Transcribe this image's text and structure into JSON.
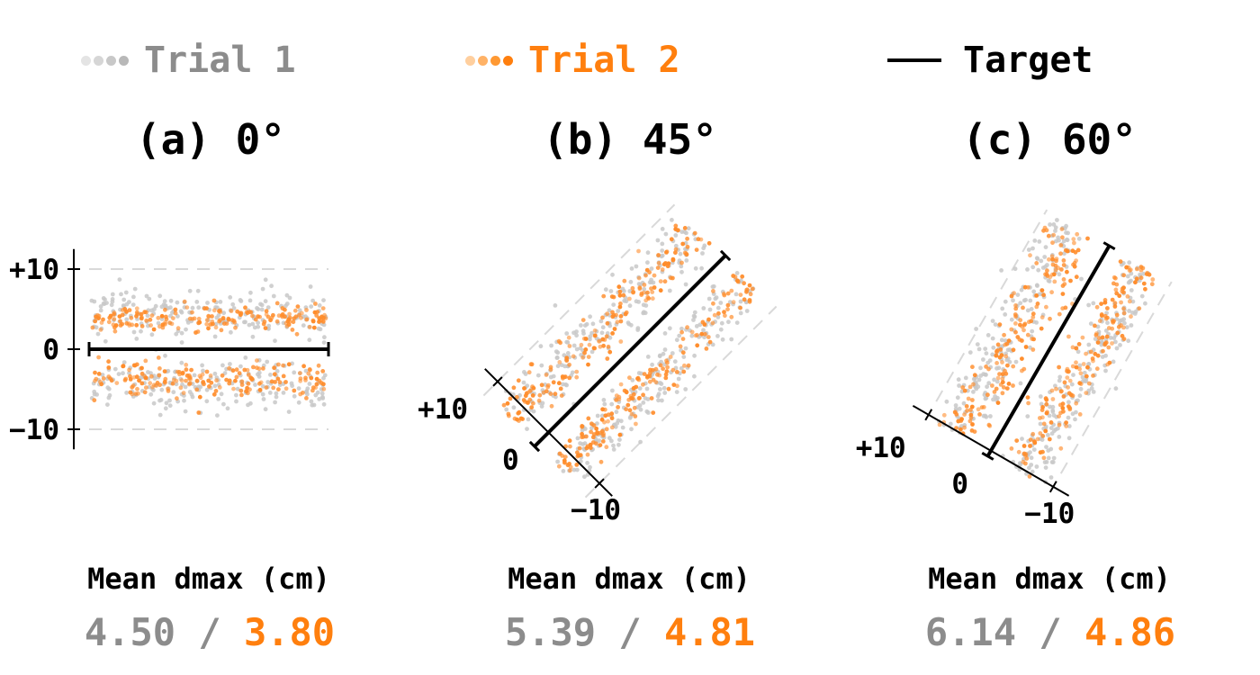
{
  "legend": {
    "trial1": "Trial 1",
    "trial2": "Trial 2",
    "target": "Target"
  },
  "colors": {
    "trial1": "#8c8c8c",
    "trial1_points": "#c8c8c8",
    "trial2": "#ff7f0e",
    "trial2_points": "#ff8c2a",
    "target": "#000000",
    "guide": "#d9d9d9"
  },
  "stat_label": "Mean dmax (cm)",
  "stat_separator": "/",
  "chart_data": [
    {
      "type": "scatter",
      "title": "(a) 0°",
      "angle_deg": 0,
      "yticks": [
        "+10",
        "0",
        "−10"
      ],
      "ylim": [
        -12,
        12
      ],
      "series": [
        {
          "name": "Trial 1",
          "bands": [
            {
              "center": 4.5,
              "spread": 3.0
            },
            {
              "center": -4.5,
              "spread": 3.0
            }
          ]
        },
        {
          "name": "Trial 2",
          "bands": [
            {
              "center": 3.8,
              "spread": 1.5
            },
            {
              "center": -3.8,
              "spread": 2.0
            }
          ]
        }
      ],
      "guides": [
        10,
        -10
      ],
      "mean_dmax": {
        "trial1": "4.50",
        "trial2": "3.80"
      }
    },
    {
      "type": "scatter",
      "title": "(b) 45°",
      "angle_deg": 45,
      "yticks": [
        "+10",
        "0",
        "−10"
      ],
      "ylim": [
        -12,
        12
      ],
      "series": [
        {
          "name": "Trial 1",
          "bands": [
            {
              "center": 5.4,
              "spread": 3.0
            },
            {
              "center": -5.4,
              "spread": 3.0
            }
          ]
        },
        {
          "name": "Trial 2",
          "bands": [
            {
              "center": 4.8,
              "spread": 2.6
            },
            {
              "center": -4.8,
              "spread": 2.6
            }
          ]
        }
      ],
      "guides": [
        10,
        -10
      ],
      "mean_dmax": {
        "trial1": "5.39",
        "trial2": "4.81"
      }
    },
    {
      "type": "scatter",
      "title": "(c) 60°",
      "angle_deg": 60,
      "yticks": [
        "+10",
        "0",
        "−10"
      ],
      "ylim": [
        -12,
        12
      ],
      "series": [
        {
          "name": "Trial 1",
          "bands": [
            {
              "center": 6.1,
              "spread": 3.0
            },
            {
              "center": -6.1,
              "spread": 3.0
            }
          ]
        },
        {
          "name": "Trial 2",
          "bands": [
            {
              "center": 4.9,
              "spread": 3.0
            },
            {
              "center": -4.9,
              "spread": 2.6
            }
          ]
        }
      ],
      "guides": [
        10,
        -10
      ],
      "mean_dmax": {
        "trial1": "6.14",
        "trial2": "4.86"
      }
    }
  ]
}
